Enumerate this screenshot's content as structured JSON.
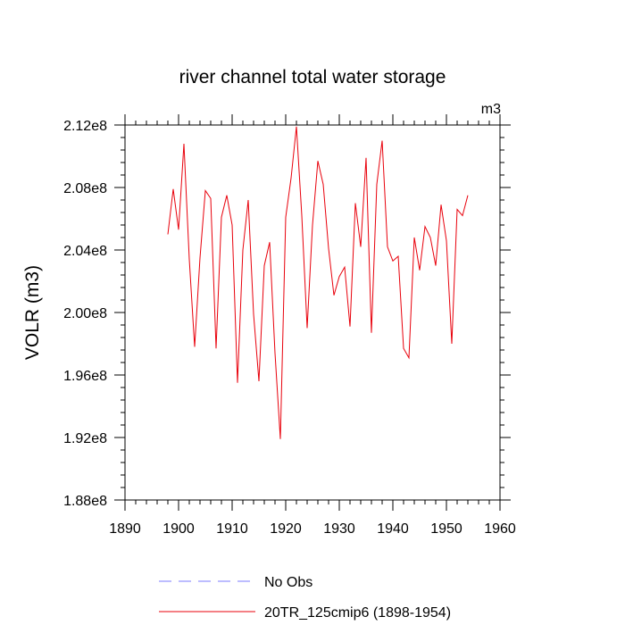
{
  "chart_data": {
    "type": "line",
    "title": "river channel total water storage",
    "units_label": "m3",
    "xlabel": "",
    "ylabel": "VOLR  (m3)",
    "xlim": [
      1890,
      1960
    ],
    "ylim": [
      188000000.0,
      212000000.0
    ],
    "x_ticks": [
      1890,
      1900,
      1910,
      1920,
      1930,
      1940,
      1950,
      1960
    ],
    "x_tick_labels": [
      "1890",
      "1900",
      "1910",
      "1920",
      "1930",
      "1940",
      "1950",
      "1960"
    ],
    "y_ticks": [
      188000000.0,
      192000000.0,
      196000000.0,
      200000000.0,
      204000000.0,
      208000000.0,
      212000000.0
    ],
    "y_tick_labels": [
      "1.88e8",
      "1.92e8",
      "1.96e8",
      "2.00e8",
      "2.04e8",
      "2.08e8",
      "2.12e8"
    ],
    "legend_position": "bottom",
    "series": [
      {
        "name": "No Obs",
        "color": "#7b7bff",
        "dashed": true,
        "x": [],
        "values": []
      },
      {
        "name": "20TR_125cmip6 (1898-1954)",
        "color": "#e8000b",
        "dashed": false,
        "x": [
          1898,
          1899,
          1900,
          1901,
          1902,
          1903,
          1904,
          1905,
          1906,
          1907,
          1908,
          1909,
          1910,
          1911,
          1912,
          1913,
          1914,
          1915,
          1916,
          1917,
          1918,
          1919,
          1920,
          1921,
          1922,
          1923,
          1924,
          1925,
          1926,
          1927,
          1928,
          1929,
          1930,
          1931,
          1932,
          1933,
          1934,
          1935,
          1936,
          1937,
          1938,
          1939,
          1940,
          1941,
          1942,
          1943,
          1944,
          1945,
          1946,
          1947,
          1948,
          1949,
          1950,
          1951,
          1952,
          1953,
          1954
        ],
        "values": [
          205000000.0,
          207900000.0,
          205300000.0,
          210800000.0,
          203400000.0,
          197800000.0,
          203500000.0,
          207800000.0,
          207300000.0,
          197700000.0,
          206100000.0,
          207500000.0,
          205600000.0,
          195500000.0,
          204000000.0,
          207200000.0,
          199900000.0,
          195600000.0,
          203000000.0,
          204500000.0,
          197400000.0,
          191900000.0,
          206100000.0,
          208600000.0,
          211900000.0,
          206200000.0,
          199000000.0,
          205600000.0,
          209700000.0,
          208200000.0,
          204100000.0,
          201100000.0,
          202300000.0,
          202900000.0,
          199100000.0,
          207000000.0,
          204200000.0,
          209900000.0,
          198700000.0,
          208200000.0,
          211000000.0,
          204200000.0,
          203300000.0,
          203600000.0,
          197700000.0,
          197100000.0,
          204800000.0,
          202700000.0,
          205500000.0,
          204800000.0,
          203000000.0,
          206900000.0,
          204600000.0,
          198000000.0,
          206600000.0,
          206200000.0,
          207500000.0
        ]
      }
    ]
  }
}
